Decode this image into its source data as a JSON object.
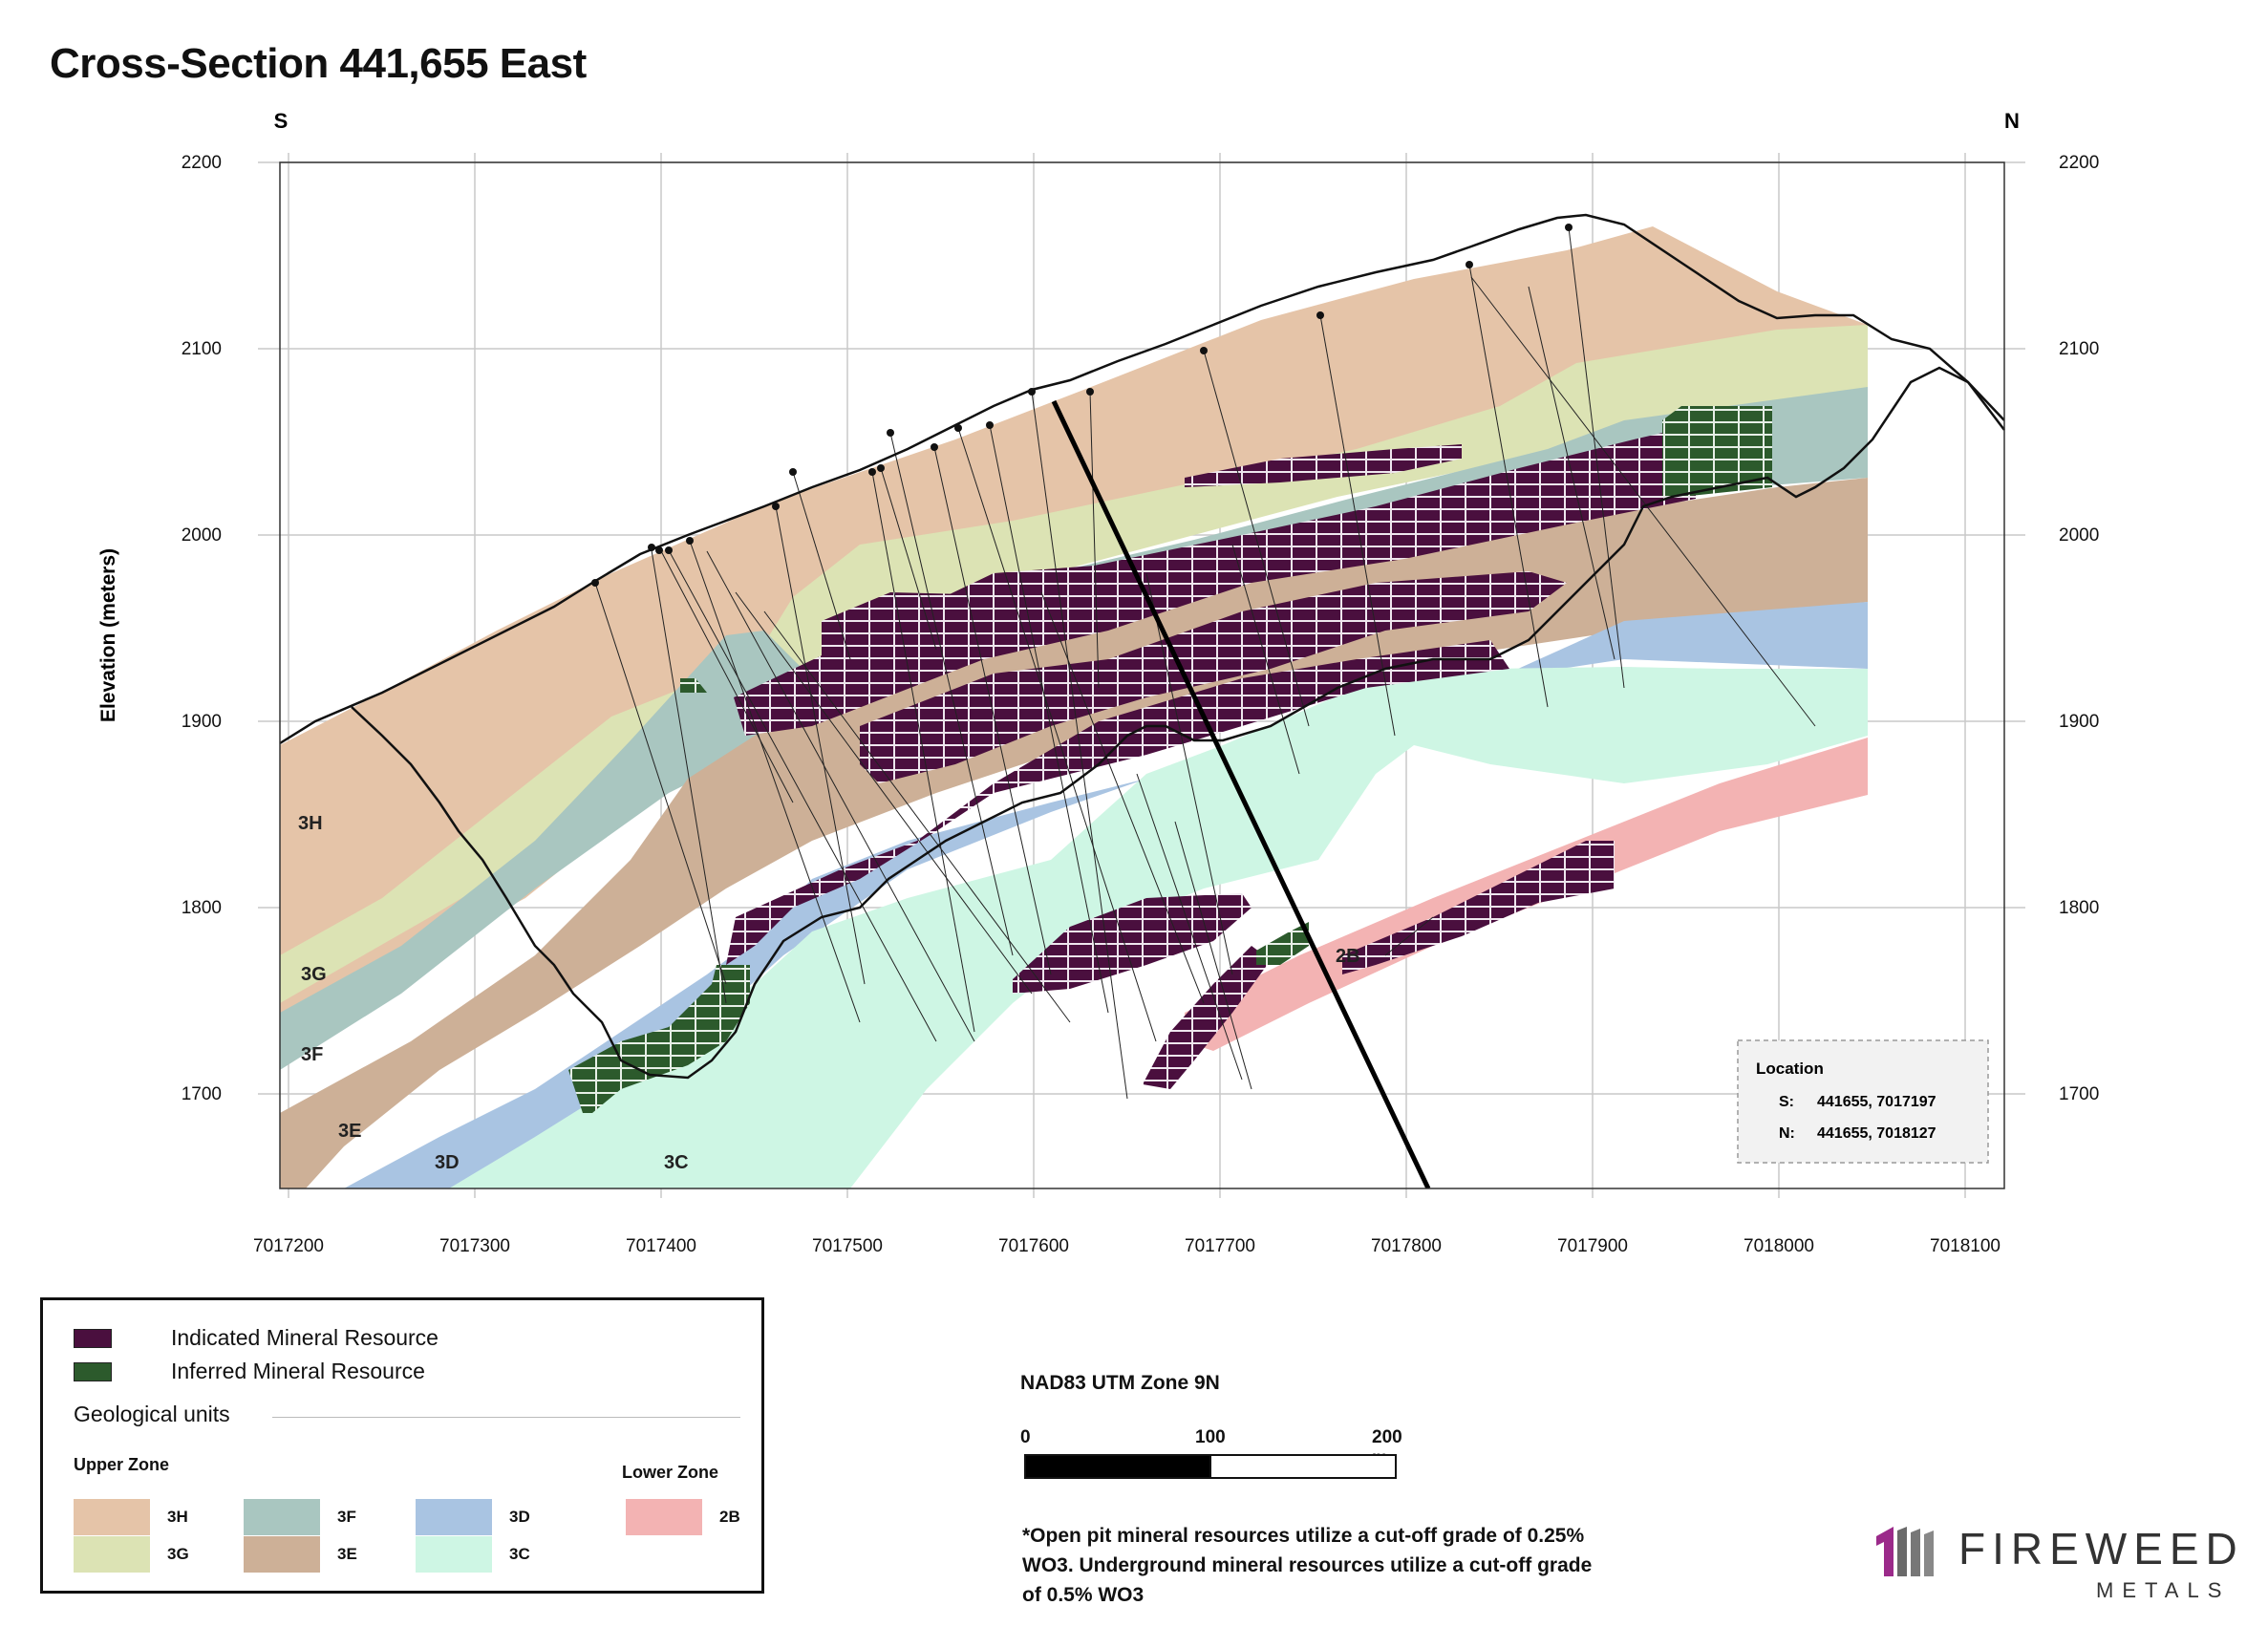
{
  "title": "Cross-Section 441,655 East",
  "directions": {
    "south": "S",
    "north": "N"
  },
  "y_axis_label": "Elevation (meters)",
  "x_ticks": [
    "7017200",
    "7017300",
    "7017400",
    "7017500",
    "7017600",
    "7017700",
    "7017800",
    "7017900",
    "7018000",
    "7018100"
  ],
  "y_ticks": [
    "2200",
    "2100",
    "2000",
    "1900",
    "1800",
    "1700"
  ],
  "unit_labels": {
    "u3H": "3H",
    "u3G": "3G",
    "u3F": "3F",
    "u3E": "3E",
    "u3D": "3D",
    "u3C": "3C",
    "u2B": "2B"
  },
  "location_box": {
    "title": "Location",
    "s_label": "S:",
    "s_value": "441655, 7017197",
    "n_label": "N:",
    "n_value": "441655, 7018127"
  },
  "legend": {
    "indicated": "Indicated Mineral Resource",
    "inferred": "Inferred Mineral Resource",
    "geological_units": "Geological units",
    "upper_zone": "Upper Zone",
    "lower_zone": "Lower Zone",
    "units": [
      {
        "label": "3H",
        "color": "#e5c4a8"
      },
      {
        "label": "3G",
        "color": "#dce3b4"
      },
      {
        "label": "3F",
        "color": "#a9c6c0"
      },
      {
        "label": "3E",
        "color": "#cdb097"
      },
      {
        "label": "3D",
        "color": "#a9c4e2"
      },
      {
        "label": "3C",
        "color": "#cef6e4"
      },
      {
        "label": "2B",
        "color": "#f3b3b3"
      }
    ]
  },
  "colors": {
    "indicated": "#4a0f3e",
    "inferred": "#2c5a2c"
  },
  "scale": {
    "datum": "NAD83 UTM Zone 9N",
    "label0": "0",
    "label100": "100",
    "label200": "200 m"
  },
  "footnote": "*Open pit mineral resources utilize a cut-off grade of 0.25% WO3. Underground mineral resources utilize a cut-off grade of 0.5% WO3",
  "logo": {
    "main": "FIREWEED",
    "sub": "METALS"
  }
}
